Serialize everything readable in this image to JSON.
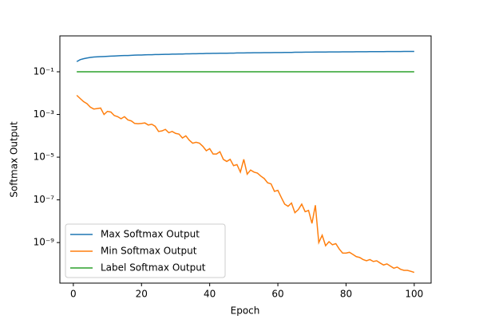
{
  "chart_data": {
    "type": "line",
    "xlabel": "Epoch",
    "ylabel": "Softmax Output",
    "log_y": true,
    "legend": "lower left",
    "xlim": [
      -3.95,
      104.95
    ],
    "ylim": [
      1.26e-11,
      4.8
    ],
    "xticks": [
      0,
      20,
      40,
      60,
      80,
      100
    ],
    "yticks": [
      {
        "value": 0.1,
        "label": "10⁻¹"
      },
      {
        "value": 0.001,
        "label": "10⁻³"
      },
      {
        "value": 1e-05,
        "label": "10⁻⁵"
      },
      {
        "value": 1e-07,
        "label": "10⁻⁷"
      },
      {
        "value": 1e-09,
        "label": "10⁻⁹"
      }
    ],
    "x": [
      1,
      2,
      3,
      4,
      5,
      6,
      7,
      8,
      9,
      10,
      11,
      12,
      13,
      14,
      15,
      16,
      17,
      18,
      19,
      20,
      21,
      22,
      23,
      24,
      25,
      26,
      27,
      28,
      29,
      30,
      31,
      32,
      33,
      34,
      35,
      36,
      37,
      38,
      39,
      40,
      41,
      42,
      43,
      44,
      45,
      46,
      47,
      48,
      49,
      50,
      51,
      52,
      53,
      54,
      55,
      56,
      57,
      58,
      59,
      60,
      61,
      62,
      63,
      64,
      65,
      66,
      67,
      68,
      69,
      70,
      71,
      72,
      73,
      74,
      75,
      76,
      77,
      78,
      79,
      80,
      81,
      82,
      83,
      84,
      85,
      86,
      87,
      88,
      89,
      90,
      91,
      92,
      93,
      94,
      95,
      96,
      97,
      98,
      99,
      100
    ],
    "series": [
      {
        "name": "Max Softmax Output",
        "color": "#1f77b4",
        "values": [
          0.3,
          0.37,
          0.41,
          0.44,
          0.47,
          0.49,
          0.5,
          0.51,
          0.52,
          0.53,
          0.54,
          0.55,
          0.56,
          0.57,
          0.58,
          0.58,
          0.59,
          0.6,
          0.61,
          0.61,
          0.62,
          0.63,
          0.63,
          0.64,
          0.64,
          0.65,
          0.66,
          0.66,
          0.67,
          0.67,
          0.68,
          0.68,
          0.69,
          0.69,
          0.7,
          0.7,
          0.71,
          0.71,
          0.72,
          0.72,
          0.73,
          0.73,
          0.74,
          0.74,
          0.74,
          0.75,
          0.75,
          0.76,
          0.76,
          0.76,
          0.77,
          0.77,
          0.78,
          0.78,
          0.78,
          0.79,
          0.79,
          0.79,
          0.8,
          0.8,
          0.8,
          0.81,
          0.81,
          0.81,
          0.82,
          0.82,
          0.82,
          0.83,
          0.83,
          0.83,
          0.84,
          0.84,
          0.84,
          0.84,
          0.85,
          0.85,
          0.85,
          0.85,
          0.86,
          0.86,
          0.86,
          0.86,
          0.87,
          0.87,
          0.87,
          0.87,
          0.88,
          0.88,
          0.88,
          0.88,
          0.88,
          0.89,
          0.89,
          0.89,
          0.89,
          0.89,
          0.9,
          0.9,
          0.9,
          0.9
        ]
      },
      {
        "name": "Min Softmax Output",
        "color": "#ff7f0e",
        "values": [
          0.0079,
          0.0056,
          0.004,
          0.0032,
          0.0022,
          0.0018,
          0.0019,
          0.002,
          0.001,
          0.0014,
          0.0013,
          0.00089,
          0.00079,
          0.00063,
          0.00079,
          0.00056,
          0.0005,
          0.00038,
          0.00037,
          0.00038,
          0.0004,
          0.00032,
          0.00035,
          0.00028,
          0.00016,
          0.00017,
          0.0002,
          0.00014,
          0.00016,
          0.00013,
          0.00012,
          7.9e-05,
          0.0001,
          6.3e-05,
          4.5e-05,
          5e-05,
          4.5e-05,
          3.2e-05,
          2e-05,
          2.5e-05,
          1.4e-05,
          1.4e-05,
          1.8e-05,
          7.9e-06,
          6.3e-06,
          7.9e-06,
          4e-06,
          4.5e-06,
          2e-06,
          7.9e-06,
          1.6e-06,
          2.5e-06,
          2e-06,
          1.8e-06,
          1.3e-06,
          1e-06,
          6.3e-07,
          5.6e-07,
          2.5e-07,
          2.8e-07,
          1.3e-07,
          6.3e-08,
          5e-08,
          7.1e-08,
          2.5e-08,
          3.5e-08,
          6.3e-08,
          2.8e-08,
          3.2e-08,
          7.9e-09,
          5.6e-08,
          1e-09,
          2.2e-09,
          7.1e-10,
          1.1e-09,
          7.9e-10,
          8.9e-10,
          5e-10,
          3.2e-10,
          3.2e-10,
          3.5e-10,
          2.8e-10,
          2.2e-10,
          2e-10,
          1.6e-10,
          1.4e-10,
          1.6e-10,
          1.3e-10,
          1.4e-10,
          1.1e-10,
          8.9e-11,
          1e-10,
          7.9e-11,
          6.3e-11,
          7.1e-11,
          5.6e-11,
          5e-11,
          5e-11,
          4.5e-11,
          4e-11
        ]
      },
      {
        "name": "Label Softmax Output",
        "color": "#2ca02c",
        "values": [
          0.1,
          0.1,
          0.1,
          0.1,
          0.1,
          0.1,
          0.1,
          0.1,
          0.1,
          0.1,
          0.1,
          0.1,
          0.1,
          0.1,
          0.1,
          0.1,
          0.1,
          0.1,
          0.1,
          0.1,
          0.1,
          0.1,
          0.1,
          0.1,
          0.1,
          0.1,
          0.1,
          0.1,
          0.1,
          0.1,
          0.1,
          0.1,
          0.1,
          0.1,
          0.1,
          0.1,
          0.1,
          0.1,
          0.1,
          0.1,
          0.1,
          0.1,
          0.1,
          0.1,
          0.1,
          0.1,
          0.1,
          0.1,
          0.1,
          0.1,
          0.1,
          0.1,
          0.1,
          0.1,
          0.1,
          0.1,
          0.1,
          0.1,
          0.1,
          0.1,
          0.1,
          0.1,
          0.1,
          0.1,
          0.1,
          0.1,
          0.1,
          0.1,
          0.1,
          0.1,
          0.1,
          0.1,
          0.1,
          0.1,
          0.1,
          0.1,
          0.1,
          0.1,
          0.1,
          0.1,
          0.1,
          0.1,
          0.1,
          0.1,
          0.1,
          0.1,
          0.1,
          0.1,
          0.1,
          0.1,
          0.1,
          0.1,
          0.1,
          0.1,
          0.1,
          0.1,
          0.1,
          0.1,
          0.1,
          0.1
        ]
      }
    ]
  }
}
